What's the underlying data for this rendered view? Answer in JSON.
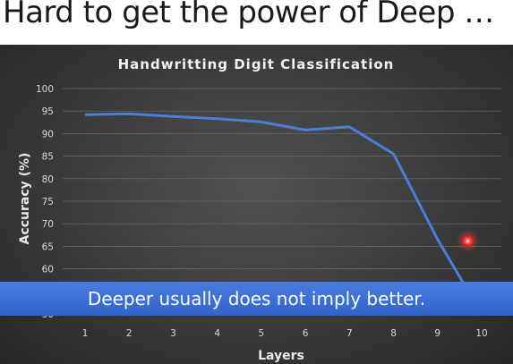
{
  "slide": {
    "title": "Hard to get the power of Deep …",
    "caption": "Deeper usually does not imply better."
  },
  "colors": {
    "chart_background": "#3a3a3a",
    "series_line": "#4a7fd8",
    "banner": "#3c6fd8"
  },
  "chart_data": {
    "type": "line",
    "title": "Handwritting  Digit Classification",
    "xlabel": "Layers",
    "ylabel": "Accuracy (%)",
    "x": [
      1,
      2,
      3,
      4,
      5,
      6,
      7,
      8,
      9,
      10
    ],
    "series": [
      {
        "values": [
          94.2,
          94.4,
          93.8,
          93.3,
          92.6,
          90.8,
          91.5,
          85.5,
          66.5,
          50.0
        ]
      }
    ],
    "yticks": [
      100,
      95,
      90,
      85,
      80,
      75,
      70,
      65,
      60,
      55,
      50
    ],
    "ylim": [
      50,
      100
    ],
    "xlim": [
      1,
      10
    ],
    "grid": true,
    "legend": "none"
  }
}
